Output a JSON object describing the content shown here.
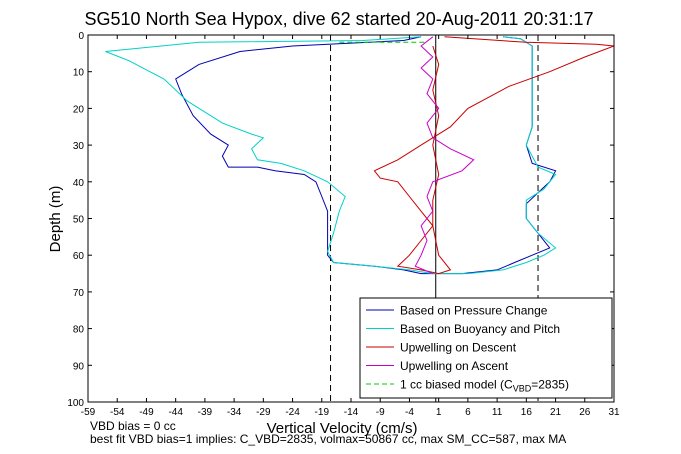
{
  "chart_data": {
    "type": "line",
    "title": "SG510 North Sea Hypox, dive 62 started 20-Aug-2011 20:31:17",
    "xlabel": "Vertical Velocity (cm/s)",
    "ylabel": "Depth (m)",
    "xlim": [
      -59,
      31
    ],
    "ylim": [
      100,
      0
    ],
    "y_reversed": true,
    "grid": false,
    "legend_position": "bottom-right",
    "x_ticks": [
      -59,
      -54,
      -49,
      -44,
      -39,
      -34,
      -29,
      -24,
      -19,
      -14,
      -9,
      -4,
      1,
      6,
      11,
      16,
      21,
      26,
      31
    ],
    "y_ticks": [
      0,
      10,
      20,
      30,
      40,
      50,
      60,
      70,
      80,
      90,
      100
    ],
    "vertical_reference_lines": [
      {
        "x": -17.5,
        "style": "dashed"
      },
      {
        "x": 0.5,
        "style": "solid"
      },
      {
        "x": 18,
        "style": "dashed"
      }
    ],
    "series": [
      {
        "name": "Based on Pressure Change",
        "color": "#0000b4",
        "points": [
          [
            -2,
            0.5
          ],
          [
            -5,
            1.5
          ],
          [
            -24,
            3
          ],
          [
            -33,
            4.5
          ],
          [
            -40,
            8
          ],
          [
            -44,
            12
          ],
          [
            -43,
            16
          ],
          [
            -41,
            22
          ],
          [
            -38,
            27
          ],
          [
            -35,
            30
          ],
          [
            -36,
            33
          ],
          [
            -35,
            36
          ],
          [
            -30,
            36
          ],
          [
            -27,
            37
          ],
          [
            -22,
            38
          ],
          [
            -20,
            40
          ],
          [
            -19,
            44
          ],
          [
            -18,
            48
          ],
          [
            -18,
            54
          ],
          [
            -18,
            60
          ],
          [
            -17,
            62
          ],
          [
            -10,
            63
          ],
          [
            -5,
            64
          ],
          [
            -2,
            65
          ],
          [
            5,
            65
          ],
          [
            11,
            64
          ],
          [
            14,
            62
          ],
          [
            17,
            60
          ],
          [
            20,
            58
          ],
          [
            18,
            54
          ],
          [
            16,
            50
          ],
          [
            16,
            46
          ],
          [
            18,
            43
          ],
          [
            20,
            40
          ],
          [
            21,
            37
          ],
          [
            17,
            35
          ],
          [
            16,
            30
          ],
          [
            17,
            25
          ],
          [
            17,
            18
          ],
          [
            17,
            10
          ],
          [
            17,
            6
          ],
          [
            17,
            3
          ],
          [
            15,
            1
          ],
          [
            12,
            0.5
          ]
        ]
      },
      {
        "name": "Based on Buoyancy and Pitch",
        "color": "#00d2c8",
        "points": [
          [
            -2,
            0.5
          ],
          [
            -12,
            1.5
          ],
          [
            -40,
            2
          ],
          [
            -56,
            4.5
          ],
          [
            -52,
            7
          ],
          [
            -46,
            12
          ],
          [
            -42,
            18
          ],
          [
            -36,
            24
          ],
          [
            -31,
            27
          ],
          [
            -29,
            28
          ],
          [
            -31,
            31
          ],
          [
            -30,
            34
          ],
          [
            -26,
            35
          ],
          [
            -22,
            37
          ],
          [
            -18,
            40
          ],
          [
            -15,
            44
          ],
          [
            -16,
            48
          ],
          [
            -17,
            54
          ],
          [
            -18,
            59
          ],
          [
            -17,
            62
          ],
          [
            -10,
            63
          ],
          [
            -4,
            64
          ],
          [
            0,
            65
          ],
          [
            6,
            65
          ],
          [
            12,
            64
          ],
          [
            16,
            62
          ],
          [
            19,
            60
          ],
          [
            21,
            58
          ],
          [
            18,
            54
          ],
          [
            16,
            50
          ],
          [
            16,
            45
          ],
          [
            19,
            42
          ],
          [
            21,
            38
          ],
          [
            18,
            36
          ],
          [
            16,
            30
          ],
          [
            17,
            25
          ],
          [
            17,
            18
          ],
          [
            17,
            10
          ],
          [
            17,
            6
          ],
          [
            17,
            3
          ],
          [
            15,
            1
          ],
          [
            12,
            0.5
          ]
        ]
      },
      {
        "name": "Upwelling on Descent",
        "color": "#c80000",
        "points": [
          [
            2,
            0.5
          ],
          [
            16,
            2
          ],
          [
            28,
            2.5
          ],
          [
            31,
            3
          ],
          [
            26,
            6
          ],
          [
            20,
            10
          ],
          [
            13,
            14
          ],
          [
            6,
            20
          ],
          [
            3,
            25
          ],
          [
            -2,
            30
          ],
          [
            -6,
            34
          ],
          [
            -10,
            37
          ],
          [
            -9,
            39
          ],
          [
            -6,
            40
          ],
          [
            -4,
            44
          ],
          [
            -2,
            48
          ],
          [
            0,
            52
          ],
          [
            -2,
            56
          ],
          [
            -4,
            60
          ],
          [
            -6,
            63
          ],
          [
            -2,
            64
          ],
          [
            1,
            65
          ],
          [
            3,
            64
          ],
          [
            1,
            60
          ],
          [
            0,
            52
          ],
          [
            0,
            45
          ],
          [
            1,
            38
          ],
          [
            0,
            30
          ],
          [
            1,
            22
          ],
          [
            0,
            15
          ],
          [
            1,
            8
          ],
          [
            0,
            3
          ]
        ]
      },
      {
        "name": "Upwelling on Ascent",
        "color": "#c800c8",
        "points": [
          [
            0,
            0.5
          ],
          [
            -2,
            3
          ],
          [
            0,
            6
          ],
          [
            -2,
            9
          ],
          [
            0,
            12
          ],
          [
            -1,
            16
          ],
          [
            1,
            20
          ],
          [
            -1,
            24
          ],
          [
            0,
            28
          ],
          [
            3,
            31
          ],
          [
            7,
            34
          ],
          [
            5,
            37
          ],
          [
            0,
            40
          ],
          [
            -1,
            44
          ],
          [
            0,
            48
          ],
          [
            -2,
            52
          ],
          [
            -1,
            56
          ],
          [
            -2,
            60
          ],
          [
            -3,
            63
          ],
          [
            0,
            65
          ]
        ]
      },
      {
        "name": "1 cc biased model (C_VBD=2835)",
        "legend_label_main": "1 cc biased model (C",
        "legend_label_sub": "VBD",
        "legend_label_end": "=2835)",
        "color": "#00cc00",
        "style": "dashed",
        "points": [
          [
            -16,
            2
          ],
          [
            -11,
            2
          ],
          [
            -6,
            2
          ],
          [
            -1,
            2
          ]
        ]
      }
    ]
  },
  "notes": {
    "vbd_bias": "VBD bias = 0 cc",
    "best_fit": "best fit VBD bias=1 implies: C_VBD=2835, volmax=50867 cc, max SM_CC=587, max MA"
  }
}
